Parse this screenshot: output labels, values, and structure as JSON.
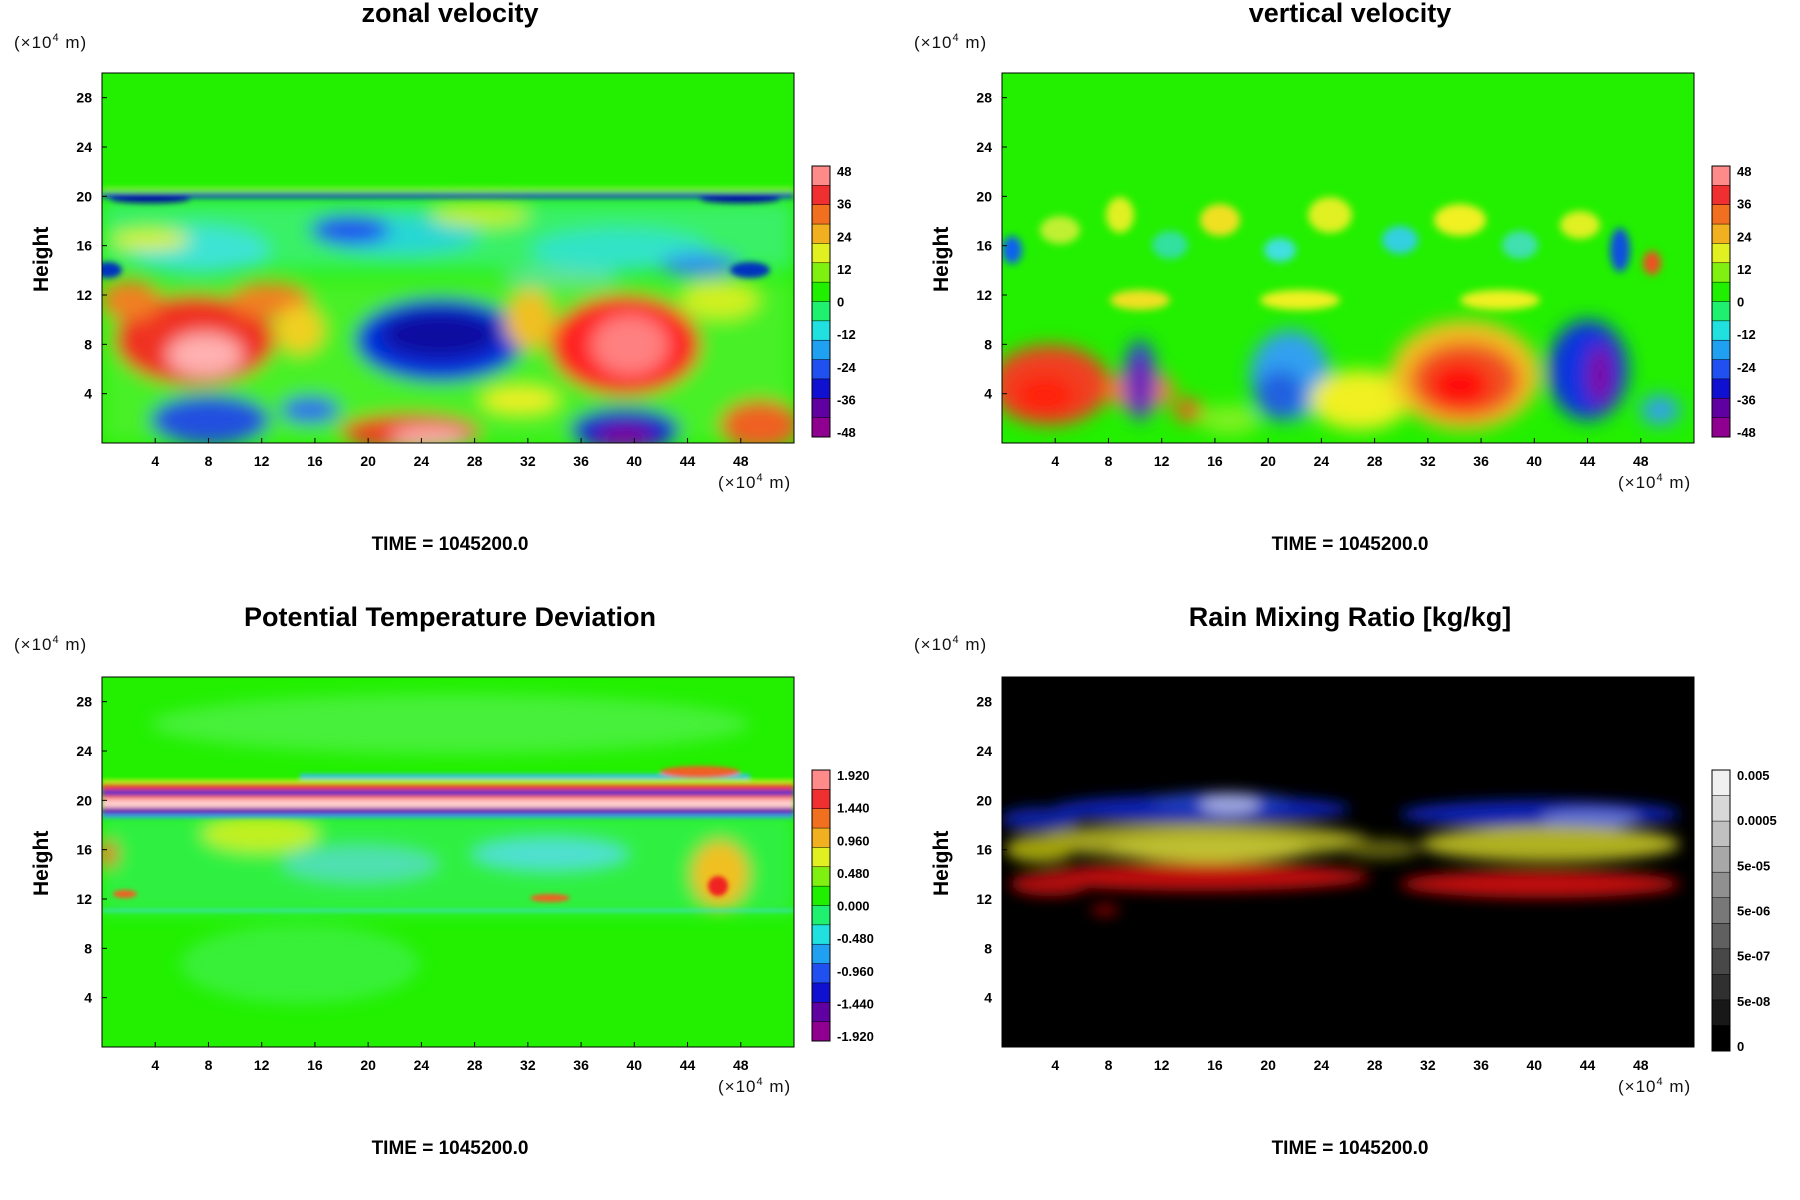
{
  "chart_data": [
    {
      "type": "heatmap",
      "title": "zonal velocity",
      "ylabel": "Height",
      "y_unit": "(×10",
      "y_unit_exp": "4",
      "y_unit_suffix": " m)",
      "x_unit": "(×10",
      "x_unit_exp": "4",
      "x_unit_suffix": " m)",
      "xlim": [
        0,
        52
      ],
      "ylim": [
        0,
        30
      ],
      "x_ticks": [
        "4",
        "8",
        "12",
        "16",
        "20",
        "24",
        "28",
        "32",
        "36",
        "40",
        "44",
        "48"
      ],
      "y_ticks": [
        "4",
        "8",
        "12",
        "16",
        "20",
        "24",
        "28"
      ],
      "colorbar_labels": [
        "48",
        "36",
        "24",
        "12",
        "0",
        "-12",
        "-24",
        "-36",
        "-48"
      ],
      "colormap": "rainbow",
      "time_label": "TIME = 1045200.0",
      "features": [
        {
          "x": 8,
          "y": 7,
          "value": 48
        },
        {
          "x": 28,
          "y": 8,
          "value": -48
        },
        {
          "x": 39,
          "y": 8,
          "value": 48
        },
        {
          "x": 39,
          "y": 1.5,
          "value": -48
        },
        {
          "x": 24,
          "y": 1,
          "value": 40
        },
        {
          "x": 18,
          "y": 17,
          "value": -40
        },
        {
          "x": 8,
          "y": 2.5,
          "value": -36
        },
        {
          "x": 45,
          "y": 14,
          "value": -30
        }
      ]
    },
    {
      "type": "heatmap",
      "title": "vertical velocity",
      "ylabel": "Height",
      "y_unit": "(×10",
      "y_unit_exp": "4",
      "y_unit_suffix": " m)",
      "x_unit": "(×10",
      "x_unit_exp": "4",
      "x_unit_suffix": " m)",
      "xlim": [
        0,
        52
      ],
      "ylim": [
        0,
        30
      ],
      "x_ticks": [
        "4",
        "8",
        "12",
        "16",
        "20",
        "24",
        "28",
        "32",
        "36",
        "40",
        "44",
        "48"
      ],
      "y_ticks": [
        "4",
        "8",
        "12",
        "16",
        "20",
        "24",
        "28"
      ],
      "colorbar_labels": [
        "48",
        "36",
        "24",
        "12",
        "0",
        "-12",
        "-24",
        "-36",
        "-48"
      ],
      "colormap": "rainbow",
      "time_label": "TIME = 1045200.0",
      "features": [
        {
          "x": 3,
          "y": 4,
          "value": 40
        },
        {
          "x": 9.5,
          "y": 5,
          "value": -48
        },
        {
          "x": 33,
          "y": 5,
          "value": 44
        },
        {
          "x": 43,
          "y": 5,
          "value": -48
        },
        {
          "x": 20,
          "y": 5,
          "value": -30
        },
        {
          "x": 48,
          "y": 14,
          "value": 36
        }
      ]
    },
    {
      "type": "heatmap",
      "title": "Potential Temperature Deviation",
      "ylabel": "Height",
      "y_unit": "(×10",
      "y_unit_exp": "4",
      "y_unit_suffix": " m)",
      "x_unit": "(×10",
      "x_unit_exp": "4",
      "x_unit_suffix": " m)",
      "xlim": [
        0,
        52
      ],
      "ylim": [
        0,
        30
      ],
      "x_ticks": [
        "4",
        "8",
        "12",
        "16",
        "20",
        "24",
        "28",
        "32",
        "36",
        "40",
        "44",
        "48"
      ],
      "y_ticks": [
        "4",
        "8",
        "12",
        "16",
        "20",
        "24",
        "28"
      ],
      "colorbar_labels": [
        "1.920",
        "1.440",
        "0.960",
        "0.480",
        "0.000",
        "-0.480",
        "-0.960",
        "-1.440",
        "-1.920"
      ],
      "colormap": "rainbow",
      "time_label": "TIME = 1045200.0",
      "features": [
        {
          "x": 26,
          "y": 21,
          "value": 1.92
        },
        {
          "x": 26,
          "y": 20,
          "value": -1.92
        },
        {
          "x": 46,
          "y": 13,
          "value": 1.2
        }
      ]
    },
    {
      "type": "heatmap",
      "title": "Rain Mixing Ratio [kg/kg]",
      "ylabel": "Height",
      "y_unit": "(×10",
      "y_unit_exp": "4",
      "y_unit_suffix": " m)",
      "x_unit": "(×10",
      "x_unit_exp": "4",
      "x_unit_suffix": " m)",
      "xlim": [
        0,
        52
      ],
      "ylim": [
        0,
        30
      ],
      "x_ticks": [
        "4",
        "8",
        "12",
        "16",
        "20",
        "24",
        "28",
        "32",
        "36",
        "40",
        "44",
        "48"
      ],
      "y_ticks": [
        "4",
        "8",
        "12",
        "16",
        "20",
        "24",
        "28"
      ],
      "colorbar_labels": [
        "0.005",
        "0.0005",
        "5e-05",
        "5e-06",
        "5e-07",
        "5e-08",
        "0"
      ],
      "colormap": "grayscale",
      "time_label": "TIME = 1045200.0",
      "features": [
        {
          "x": 26,
          "y": 13,
          "value": "red band"
        },
        {
          "x": 26,
          "y": 15.5,
          "value": "yellow band"
        },
        {
          "x": 26,
          "y": 18.5,
          "value": "blue band"
        }
      ]
    }
  ]
}
